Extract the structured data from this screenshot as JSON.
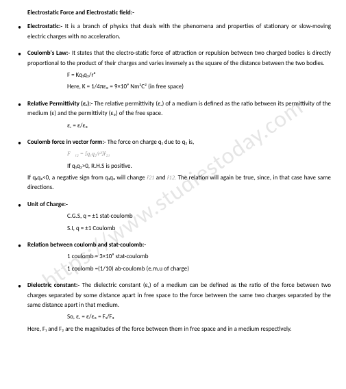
{
  "watermark": "https://www.studiestoday.com",
  "title": "Electrostatic Force and Electrostatic field:-",
  "s1": {
    "heading": "Electrostatic:-",
    "body": " It is a branch of physics that deals with the phenomena and properties of stationary or slow-moving electric charges with no acceleration."
  },
  "s2": {
    "heading": "Coulomb's Law:-",
    "body": " It states that the electro-static force of attraction or repulsion between two charged bodies is directly proportional to the product of their charges and varies inversely as the square of the distance between the two bodies.",
    "formula1": "F = Kq₁q₂/r²",
    "formula2": "Here, K = 1/4πε₀ = 9×10⁹ Nm²C² (in free space)"
  },
  "s3": {
    "heading": "Relative Permittivity (εᵣ):-",
    "body": " The relative permittivity (εᵣ) of a medium is defined as the ratio between its permittivity of the medium (ε) and the permittivity (ε₀) of the free space.",
    "formula1": "εᵣ = ε/ε₀"
  },
  "s4": {
    "heading": "Coulomb force in vector form:-",
    "body": " The force on charge q₁ due to q₂ is,",
    "vecFormula": "F⃗₁₂ = [q₁q₂/r²]r̂₂₁",
    "line2": "If q₁q₂>0, R.H.S is positive.",
    "line3a": "If q₁q₂<0, a negative sign from q₁q₂ will change ",
    "r21": "r̂21",
    "line3b": " and ",
    "r12": "r̂12.",
    "line3c": " The relation will again be true, since, in that case  have same directions."
  },
  "s5": {
    "heading": "Unit of Charge:-",
    "line1": "C.G.S, q = ±1 stat-coulomb",
    "line2": "S.I, q = ±1 Coulomb"
  },
  "s6": {
    "heading": "Relation between coulomb and stat-coulomb:-",
    "line1": "1 coulomb = 3×10⁹ stat-coulomb",
    "line2": "1 coulomb =(1/10) ab-coulomb (e.m.u of charge)"
  },
  "s7": {
    "heading": "Dielectric constant:-",
    "body": " The dielectric constant (εᵣ) of a medium can be defined as the ratio of the force between two charges separated by some distance apart in free space to the force between the same two charges separated by the same distance apart in that medium.",
    "formula1": "So, εᵣ = ε/ε₀ = F₁/F₂",
    "footer": "Here, F₁ and F₂ are the magnitudes of the force between them in free space and in a medium respectively."
  }
}
